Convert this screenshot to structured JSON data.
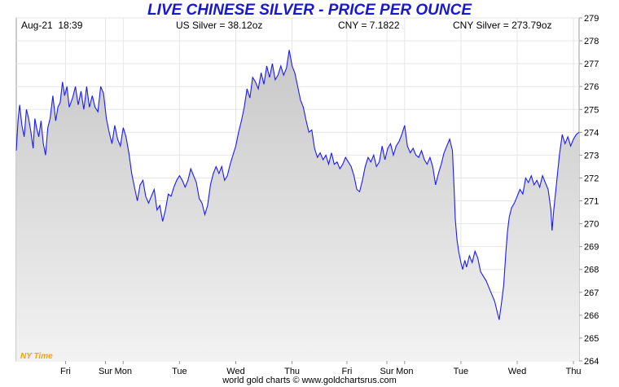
{
  "header": {
    "title": "LIVE CHINESE SILVER - PRICE PER OUNCE",
    "timestamp": "Aug-21  18:39",
    "us_silver": "US Silver = 38.12oz",
    "cny_rate": "CNY = 7.1822",
    "cny_silver": "CNY Silver = 273.79oz"
  },
  "timezone_label": "NY Time",
  "footer": {
    "credit": "world gold charts © www.goldchartsrus.com"
  },
  "colors": {
    "line": "#1a1aff",
    "title": "#1919cc",
    "timezone": "#f2a500",
    "fill_top": "#c8c8c8",
    "fill_bottom": "#f2f2f2"
  },
  "chart_data": {
    "type": "area",
    "title": "LIVE CHINESE SILVER - PRICE PER OUNCE",
    "xlabel": "",
    "ylabel": "",
    "ylim": [
      264,
      279
    ],
    "yticks": [
      264,
      265,
      266,
      267,
      268,
      269,
      270,
      271,
      272,
      273,
      274,
      275,
      276,
      277,
      278,
      279
    ],
    "xlim": [
      0,
      10
    ],
    "x_ticks": [
      {
        "label": "Fri",
        "pos": 0.875
      },
      {
        "label": "Sur",
        "pos": 1.585
      },
      {
        "label": "Mon",
        "pos": 1.9
      },
      {
        "label": "Tue",
        "pos": 2.9
      },
      {
        "label": "Wed",
        "pos": 3.9
      },
      {
        "label": "Thu",
        "pos": 4.9
      },
      {
        "label": "Fri",
        "pos": 5.875
      },
      {
        "label": "Sur",
        "pos": 6.585
      },
      {
        "label": "Mon",
        "pos": 6.9
      },
      {
        "label": "Tue",
        "pos": 7.9
      },
      {
        "label": "Wed",
        "pos": 8.9
      },
      {
        "label": "Thu",
        "pos": 9.9
      }
    ],
    "grid": true,
    "series": [
      {
        "values": [
          [
            0.0,
            273.2
          ],
          [
            0.03,
            274.5
          ],
          [
            0.06,
            275.2
          ],
          [
            0.1,
            274.3
          ],
          [
            0.14,
            273.8
          ],
          [
            0.18,
            275.0
          ],
          [
            0.22,
            274.6
          ],
          [
            0.26,
            274.0
          ],
          [
            0.3,
            273.3
          ],
          [
            0.33,
            274.6
          ],
          [
            0.36,
            274.2
          ],
          [
            0.4,
            273.8
          ],
          [
            0.44,
            274.5
          ],
          [
            0.48,
            273.5
          ],
          [
            0.52,
            273.0
          ],
          [
            0.56,
            274.2
          ],
          [
            0.6,
            274.6
          ],
          [
            0.65,
            275.6
          ],
          [
            0.7,
            274.5
          ],
          [
            0.74,
            275.1
          ],
          [
            0.78,
            275.3
          ],
          [
            0.82,
            276.2
          ],
          [
            0.86,
            275.6
          ],
          [
            0.9,
            276.0
          ],
          [
            0.94,
            275.1
          ],
          [
            1.0,
            275.5
          ],
          [
            1.05,
            276.0
          ],
          [
            1.1,
            275.2
          ],
          [
            1.15,
            275.8
          ],
          [
            1.2,
            275.0
          ],
          [
            1.25,
            276.0
          ],
          [
            1.3,
            275.1
          ],
          [
            1.35,
            275.6
          ],
          [
            1.4,
            275.1
          ],
          [
            1.45,
            274.9
          ],
          [
            1.5,
            276.0
          ],
          [
            1.55,
            275.7
          ],
          [
            1.6,
            274.6
          ],
          [
            1.65,
            274.0
          ],
          [
            1.7,
            273.5
          ],
          [
            1.75,
            274.3
          ],
          [
            1.8,
            273.7
          ],
          [
            1.85,
            273.4
          ],
          [
            1.9,
            274.2
          ],
          [
            1.95,
            273.8
          ],
          [
            2.0,
            273.1
          ],
          [
            2.05,
            272.2
          ],
          [
            2.1,
            271.6
          ],
          [
            2.15,
            271.0
          ],
          [
            2.2,
            271.7
          ],
          [
            2.25,
            271.9
          ],
          [
            2.3,
            271.2
          ],
          [
            2.35,
            270.9
          ],
          [
            2.4,
            271.2
          ],
          [
            2.45,
            271.5
          ],
          [
            2.5,
            270.6
          ],
          [
            2.55,
            270.8
          ],
          [
            2.6,
            270.1
          ],
          [
            2.65,
            270.6
          ],
          [
            2.7,
            271.3
          ],
          [
            2.75,
            271.2
          ],
          [
            2.8,
            271.6
          ],
          [
            2.85,
            271.9
          ],
          [
            2.9,
            272.1
          ],
          [
            2.95,
            271.9
          ],
          [
            3.0,
            271.6
          ],
          [
            3.05,
            271.9
          ],
          [
            3.1,
            272.4
          ],
          [
            3.15,
            272.1
          ],
          [
            3.2,
            271.8
          ],
          [
            3.25,
            271.1
          ],
          [
            3.3,
            270.9
          ],
          [
            3.35,
            270.4
          ],
          [
            3.4,
            270.8
          ],
          [
            3.45,
            271.7
          ],
          [
            3.5,
            272.2
          ],
          [
            3.55,
            272.5
          ],
          [
            3.6,
            272.2
          ],
          [
            3.65,
            272.5
          ],
          [
            3.7,
            271.9
          ],
          [
            3.75,
            272.1
          ],
          [
            3.8,
            272.6
          ],
          [
            3.85,
            273.0
          ],
          [
            3.9,
            273.4
          ],
          [
            3.95,
            274.0
          ],
          [
            4.0,
            274.5
          ],
          [
            4.05,
            275.1
          ],
          [
            4.1,
            275.9
          ],
          [
            4.15,
            275.5
          ],
          [
            4.2,
            276.4
          ],
          [
            4.25,
            276.2
          ],
          [
            4.3,
            275.9
          ],
          [
            4.35,
            276.6
          ],
          [
            4.4,
            276.1
          ],
          [
            4.45,
            276.9
          ],
          [
            4.5,
            276.4
          ],
          [
            4.55,
            277.0
          ],
          [
            4.6,
            276.3
          ],
          [
            4.65,
            276.5
          ],
          [
            4.7,
            276.9
          ],
          [
            4.75,
            276.5
          ],
          [
            4.8,
            276.8
          ],
          [
            4.85,
            277.6
          ],
          [
            4.9,
            276.9
          ],
          [
            4.95,
            276.6
          ],
          [
            5.0,
            276.0
          ],
          [
            5.05,
            275.4
          ],
          [
            5.1,
            275.1
          ],
          [
            5.15,
            274.5
          ],
          [
            5.2,
            274.0
          ],
          [
            5.25,
            274.1
          ],
          [
            5.3,
            273.3
          ],
          [
            5.35,
            272.9
          ],
          [
            5.4,
            273.1
          ],
          [
            5.45,
            272.8
          ],
          [
            5.5,
            273.0
          ],
          [
            5.55,
            272.6
          ],
          [
            5.6,
            273.1
          ],
          [
            5.65,
            272.6
          ],
          [
            5.7,
            272.7
          ],
          [
            5.75,
            272.4
          ],
          [
            5.8,
            272.6
          ],
          [
            5.85,
            272.9
          ],
          [
            5.9,
            272.7
          ],
          [
            5.95,
            272.5
          ],
          [
            6.0,
            272.1
          ],
          [
            6.05,
            271.5
          ],
          [
            6.1,
            271.4
          ],
          [
            6.15,
            271.9
          ],
          [
            6.2,
            272.5
          ],
          [
            6.25,
            272.9
          ],
          [
            6.3,
            272.7
          ],
          [
            6.35,
            273.0
          ],
          [
            6.4,
            272.5
          ],
          [
            6.45,
            272.7
          ],
          [
            6.5,
            273.4
          ],
          [
            6.55,
            272.8
          ],
          [
            6.6,
            273.3
          ],
          [
            6.65,
            273.5
          ],
          [
            6.7,
            273.0
          ],
          [
            6.75,
            273.4
          ],
          [
            6.8,
            273.6
          ],
          [
            6.85,
            273.9
          ],
          [
            6.9,
            274.3
          ],
          [
            6.95,
            273.4
          ],
          [
            7.0,
            273.1
          ],
          [
            7.05,
            273.3
          ],
          [
            7.1,
            273.0
          ],
          [
            7.15,
            272.9
          ],
          [
            7.2,
            273.2
          ],
          [
            7.25,
            272.8
          ],
          [
            7.3,
            272.6
          ],
          [
            7.35,
            272.9
          ],
          [
            7.4,
            272.5
          ],
          [
            7.45,
            271.7
          ],
          [
            7.5,
            272.2
          ],
          [
            7.55,
            272.6
          ],
          [
            7.6,
            273.1
          ],
          [
            7.65,
            273.4
          ],
          [
            7.7,
            273.7
          ],
          [
            7.75,
            273.2
          ],
          [
            7.78,
            271.5
          ],
          [
            7.8,
            270.2
          ],
          [
            7.83,
            269.3
          ],
          [
            7.86,
            268.8
          ],
          [
            7.9,
            268.3
          ],
          [
            7.93,
            268.0
          ],
          [
            7.97,
            268.4
          ],
          [
            8.0,
            268.1
          ],
          [
            8.05,
            268.6
          ],
          [
            8.1,
            268.3
          ],
          [
            8.15,
            268.8
          ],
          [
            8.2,
            268.5
          ],
          [
            8.25,
            267.9
          ],
          [
            8.3,
            267.7
          ],
          [
            8.35,
            267.5
          ],
          [
            8.4,
            267.2
          ],
          [
            8.45,
            266.9
          ],
          [
            8.5,
            266.6
          ],
          [
            8.55,
            266.1
          ],
          [
            8.58,
            265.8
          ],
          [
            8.62,
            266.5
          ],
          [
            8.66,
            267.3
          ],
          [
            8.7,
            268.8
          ],
          [
            8.73,
            269.7
          ],
          [
            8.76,
            270.3
          ],
          [
            8.8,
            270.7
          ],
          [
            8.85,
            270.9
          ],
          [
            8.9,
            271.2
          ],
          [
            8.95,
            271.5
          ],
          [
            9.0,
            271.3
          ],
          [
            9.05,
            272.0
          ],
          [
            9.1,
            271.8
          ],
          [
            9.15,
            272.1
          ],
          [
            9.2,
            271.7
          ],
          [
            9.25,
            271.9
          ],
          [
            9.3,
            271.6
          ],
          [
            9.35,
            272.1
          ],
          [
            9.4,
            271.8
          ],
          [
            9.45,
            271.5
          ],
          [
            9.5,
            270.6
          ],
          [
            9.52,
            269.7
          ],
          [
            9.55,
            270.6
          ],
          [
            9.6,
            271.8
          ],
          [
            9.65,
            273.0
          ],
          [
            9.7,
            273.9
          ],
          [
            9.75,
            273.5
          ],
          [
            9.8,
            273.8
          ],
          [
            9.85,
            273.4
          ],
          [
            9.9,
            273.7
          ],
          [
            9.95,
            273.9
          ],
          [
            10.0,
            274.0
          ]
        ]
      }
    ]
  }
}
